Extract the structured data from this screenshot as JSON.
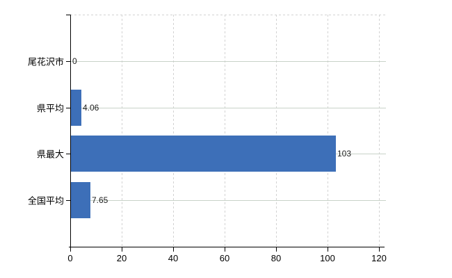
{
  "chart_data": {
    "type": "bar",
    "orientation": "horizontal",
    "title": "",
    "xlabel": "",
    "ylabel": "",
    "categories": [
      "尾花沢市",
      "県平均",
      "県最大",
      "全国平均"
    ],
    "values": [
      0,
      4.06,
      103,
      7.65
    ],
    "value_labels": [
      "0",
      "4.06",
      "103",
      "7.65"
    ],
    "xlim": [
      0,
      120
    ],
    "xticks": [
      0,
      20,
      40,
      60,
      80,
      100,
      120
    ],
    "xtick_labels": [
      "0",
      "20",
      "40",
      "60",
      "80",
      "100",
      "120"
    ],
    "legend_position": "none",
    "grid": {
      "vertical_style": "dashed",
      "horizontal_style": "solid",
      "top_border_style": "dashed"
    },
    "colors": {
      "bar": "#3d6fb8",
      "axis": "#000000",
      "category_label": "#000000",
      "tick_label": "#000000",
      "value_label": "#222222",
      "grid_vertical": "#d2d2d2",
      "grid_horizontal": "#c8d2c8",
      "background": "#ffffff"
    }
  }
}
